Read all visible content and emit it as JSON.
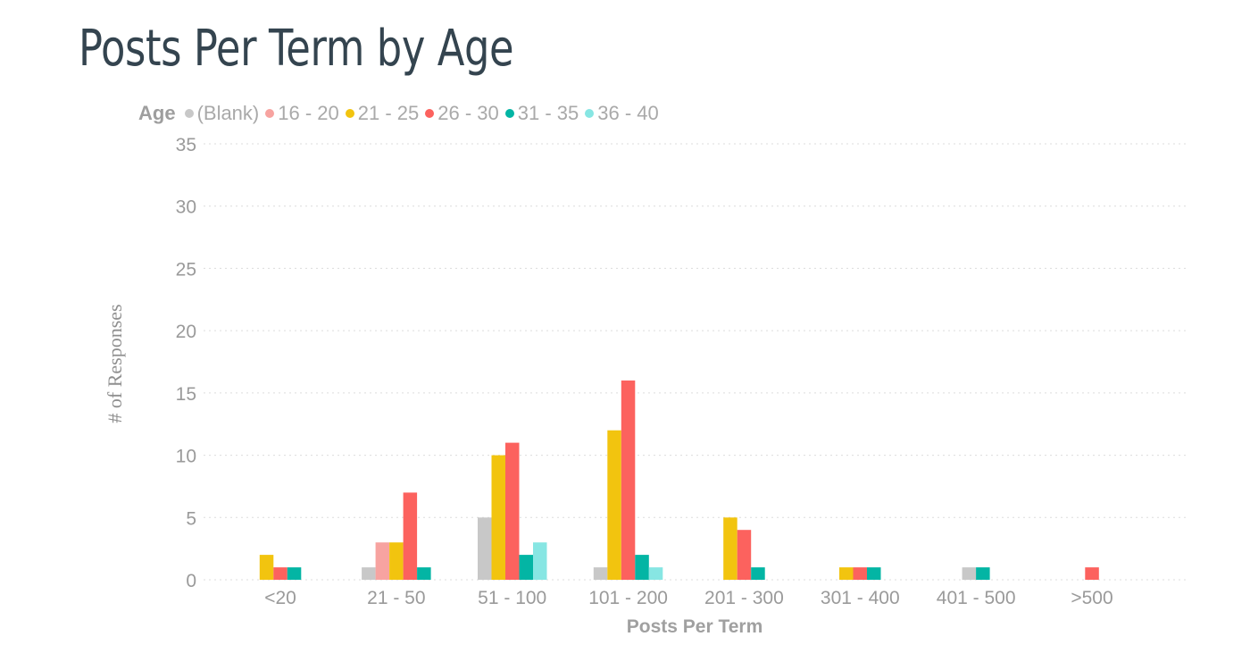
{
  "chart_data": {
    "type": "bar",
    "title": "Posts Per Term by Age",
    "legend_title": "Age",
    "legend_position": "top-left",
    "xlabel": "Posts Per Term",
    "ylabel": "# of Responses",
    "ylim": [
      0,
      35
    ],
    "yticks": [
      0,
      5,
      10,
      15,
      20,
      25,
      30,
      35
    ],
    "grid": true,
    "categories": [
      "<20",
      "21 - 50",
      "51 - 100",
      "101 - 200",
      "201 - 300",
      "301 - 400",
      "401 - 500",
      ">500"
    ],
    "series": [
      {
        "name": "(Blank)",
        "color": "#c8c8c8",
        "values": [
          null,
          1,
          5,
          1,
          null,
          null,
          1,
          null
        ]
      },
      {
        "name": "16 - 20",
        "color": "#f7a3a0",
        "values": [
          null,
          3,
          null,
          null,
          null,
          null,
          null,
          null
        ]
      },
      {
        "name": "21 - 25",
        "color": "#f2c40f",
        "values": [
          2,
          3,
          10,
          12,
          5,
          1,
          null,
          null
        ]
      },
      {
        "name": "26 - 30",
        "color": "#fc625e",
        "values": [
          1,
          7,
          11,
          16,
          4,
          1,
          null,
          1
        ]
      },
      {
        "name": "31 - 35",
        "color": "#03b5a4",
        "values": [
          1,
          1,
          2,
          2,
          1,
          1,
          1,
          null
        ]
      },
      {
        "name": "36 - 40",
        "color": "#87e6e3",
        "values": [
          null,
          null,
          3,
          1,
          null,
          null,
          null,
          null
        ]
      }
    ]
  }
}
